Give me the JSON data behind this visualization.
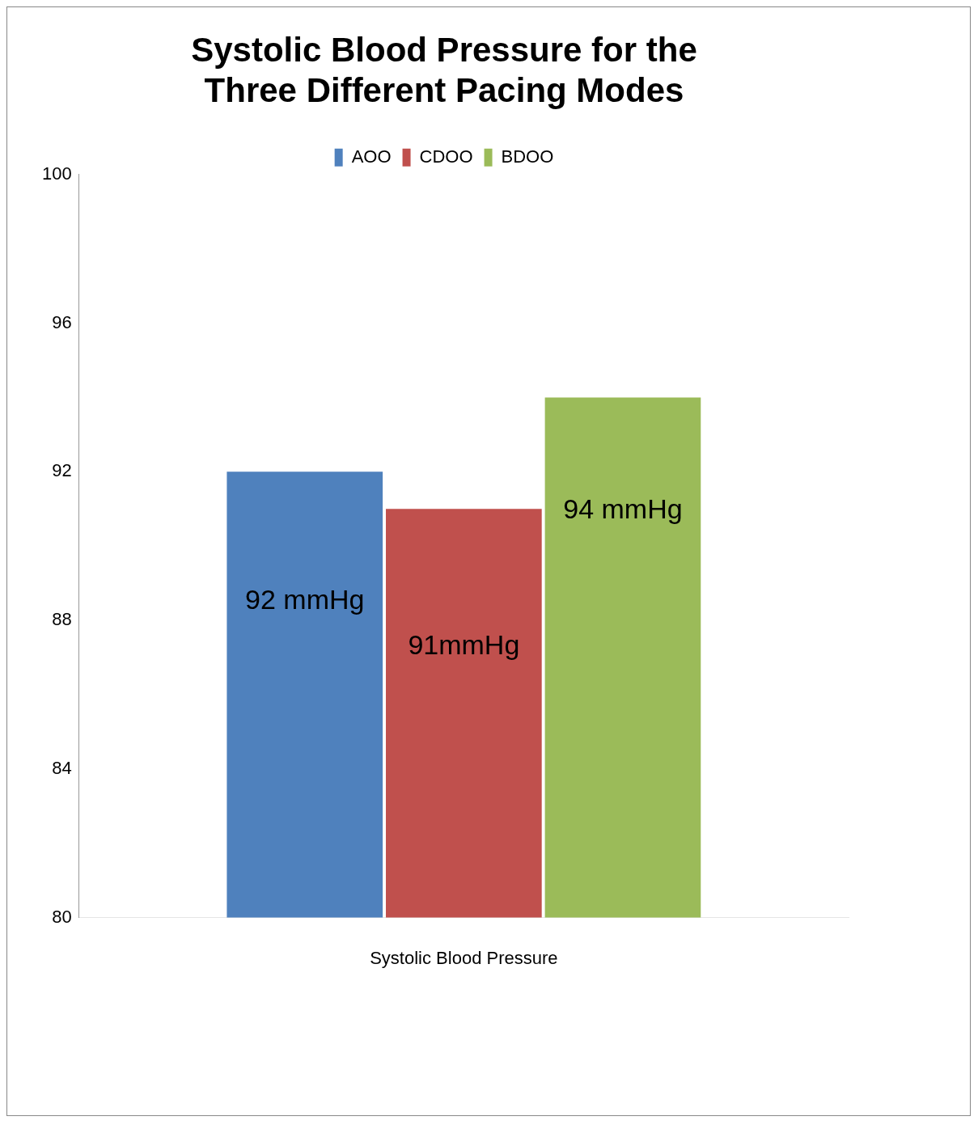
{
  "chart_data": {
    "type": "bar",
    "title": "Systolic Blood Pressure for the Three Different Pacing Modes",
    "categories": [
      "Systolic Blood Pressure"
    ],
    "series": [
      {
        "name": "AOO",
        "color": "#4f81bd",
        "values": [
          92
        ],
        "value_labels": [
          "92 mmHg"
        ]
      },
      {
        "name": "CDOO",
        "color": "#c0504d",
        "values": [
          91
        ],
        "value_labels": [
          "91mmHg"
        ]
      },
      {
        "name": "BDOO",
        "color": "#9bbb59",
        "values": [
          94
        ],
        "value_labels": [
          "94 mmHg"
        ]
      }
    ],
    "ylim": [
      80,
      100
    ],
    "yticks": [
      80,
      84,
      88,
      92,
      96,
      100
    ],
    "grid": false,
    "legend": "top"
  }
}
